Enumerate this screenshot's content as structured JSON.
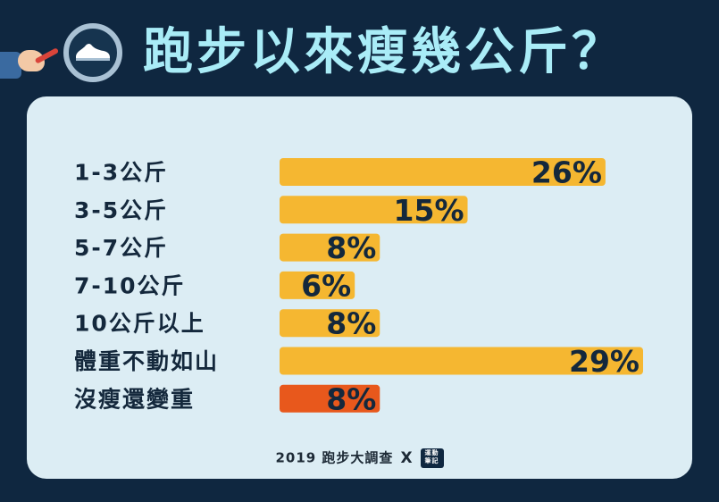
{
  "title": "跑步以來瘦幾公斤？",
  "footer": {
    "survey": "2019 跑步大調查",
    "x": "X",
    "logo_line1": "運動",
    "logo_line2": "筆記"
  },
  "colors": {
    "background": "#0f2740",
    "panel": "#dcedf4",
    "title": "#a9ecf7",
    "bar_default": "#f5b731",
    "bar_highlight": "#e8581c"
  },
  "icons": [
    "magnifier-shoe-icon",
    "hand-holding-pen-icon"
  ],
  "chart_data": {
    "type": "bar",
    "orientation": "horizontal",
    "title": "跑步以來瘦幾公斤？",
    "categories": [
      "1-3公斤",
      "3-5公斤",
      "5-7公斤",
      "7-10公斤",
      "10公斤以上",
      "體重不動如山",
      "沒瘦還變重"
    ],
    "values": [
      26,
      15,
      8,
      6,
      8,
      29,
      8
    ],
    "value_labels": [
      "26%",
      "15%",
      "8%",
      "6%",
      "8%",
      "29%",
      "8%"
    ],
    "unit": "%",
    "highlight_index": 6,
    "xlim": [
      0,
      29
    ]
  }
}
